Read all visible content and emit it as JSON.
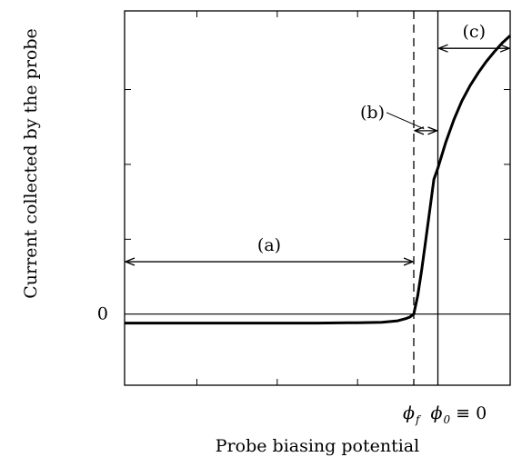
{
  "chart_data": {
    "type": "line",
    "title": "",
    "xlabel": "Probe biasing potential",
    "ylabel": "Current collected by the probe",
    "xlim": [
      -3.9,
      0.9
    ],
    "ylim": [
      -0.95,
      4.05
    ],
    "grid": false,
    "legend": "none",
    "y_tick_labels": [
      {
        "value": 0,
        "label": "0"
      }
    ],
    "x_tick_labels": [
      {
        "value": -0.3,
        "symbol": "ϕ",
        "sub": "f",
        "rest": ""
      },
      {
        "value": 0,
        "symbol": "ϕ",
        "sub": "0",
        "rest": " ≡ 0"
      }
    ],
    "minor_ticks": {
      "x": [
        -3.0,
        -2.0,
        -1.0
      ],
      "y": [
        1.0,
        2.0,
        3.0
      ]
    },
    "reference_lines": [
      {
        "orientation": "horizontal",
        "value": 0,
        "style": "solid"
      },
      {
        "orientation": "vertical",
        "value": 0,
        "style": "solid"
      },
      {
        "orientation": "vertical",
        "value": -0.3,
        "style": "dashed"
      }
    ],
    "annotations": [
      {
        "label": "(a)",
        "from": -3.9,
        "to": -0.3,
        "y": 0.7
      },
      {
        "label": "(b)",
        "from": -0.3,
        "to": 0.0,
        "y": 2.45
      },
      {
        "label": "(c)",
        "from": 0.0,
        "to": 0.9,
        "y": 3.55
      }
    ],
    "series": [
      {
        "x": [
          -3.9,
          -3.5,
          -3.0,
          -2.5,
          -2.0,
          -1.5,
          -1.0,
          -0.7,
          -0.5,
          -0.4,
          -0.35,
          -0.3,
          -0.25,
          -0.2,
          -0.15,
          -0.1,
          -0.05,
          0.0,
          0.1,
          0.2,
          0.3,
          0.4,
          0.5,
          0.6,
          0.7,
          0.8,
          0.9
        ],
        "y": [
          -0.12,
          -0.12,
          -0.12,
          -0.12,
          -0.12,
          -0.12,
          -0.115,
          -0.11,
          -0.09,
          -0.06,
          -0.04,
          0.0,
          0.25,
          0.6,
          1.0,
          1.4,
          1.8,
          1.95,
          2.3,
          2.6,
          2.85,
          3.05,
          3.22,
          3.37,
          3.5,
          3.62,
          3.72
        ]
      }
    ]
  }
}
